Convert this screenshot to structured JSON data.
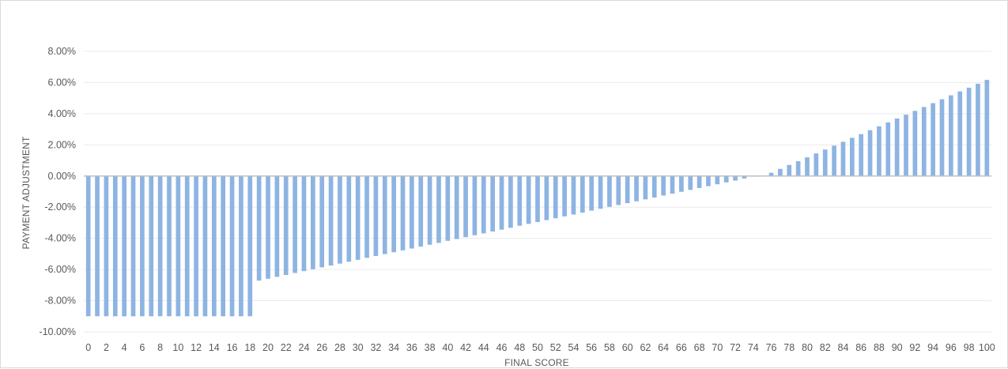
{
  "chart_data": {
    "type": "bar",
    "title": "",
    "xlabel": "FINAL SCORE",
    "ylabel": "PAYMENT ADJUSTMENT",
    "ylim": [
      -10,
      8
    ],
    "y_ticks": [
      8,
      6,
      4,
      2,
      0,
      -2,
      -4,
      -6,
      -8,
      -10
    ],
    "y_tick_labels": [
      "8.00%",
      "6.00%",
      "4.00%",
      "2.00%",
      "0.00%",
      "-2.00%",
      "-4.00%",
      "-6.00%",
      "-8.00%",
      "-10.00%"
    ],
    "y_unit": "%",
    "grid": true,
    "legend": "none",
    "bar_color": "#8db4e2",
    "zero_line_color": "#bfbfbf",
    "categories": [
      0,
      1,
      2,
      3,
      4,
      5,
      6,
      7,
      8,
      9,
      10,
      11,
      12,
      13,
      14,
      15,
      16,
      17,
      18,
      19,
      20,
      21,
      22,
      23,
      24,
      25,
      26,
      27,
      28,
      29,
      30,
      31,
      32,
      33,
      34,
      35,
      36,
      37,
      38,
      39,
      40,
      41,
      42,
      43,
      44,
      45,
      46,
      47,
      48,
      49,
      50,
      51,
      52,
      53,
      54,
      55,
      56,
      57,
      58,
      59,
      60,
      61,
      62,
      63,
      64,
      65,
      66,
      67,
      68,
      69,
      70,
      71,
      72,
      73,
      74,
      75,
      76,
      77,
      78,
      79,
      80,
      81,
      82,
      83,
      84,
      85,
      86,
      87,
      88,
      89,
      90,
      91,
      92,
      93,
      94,
      95,
      96,
      97,
      98,
      99,
      100
    ],
    "x_tick_labels": [
      "0",
      "2",
      "4",
      "6",
      "8",
      "10",
      "12",
      "14",
      "16",
      "18",
      "20",
      "22",
      "24",
      "26",
      "28",
      "30",
      "32",
      "34",
      "36",
      "38",
      "40",
      "42",
      "44",
      "46",
      "48",
      "50",
      "52",
      "54",
      "56",
      "58",
      "60",
      "62",
      "64",
      "66",
      "68",
      "70",
      "72",
      "74",
      "76",
      "78",
      "80",
      "82",
      "84",
      "86",
      "88",
      "90",
      "92",
      "94",
      "96",
      "98",
      "100"
    ],
    "values": [
      -9,
      -9,
      -9,
      -9,
      -9,
      -9,
      -9,
      -9,
      -9,
      -9,
      -9,
      -9,
      -9,
      -9,
      -9,
      -9,
      -9,
      -9,
      -9,
      -6.71,
      -6.59,
      -6.47,
      -6.35,
      -6.22,
      -6.1,
      -5.98,
      -5.86,
      -5.74,
      -5.62,
      -5.5,
      -5.38,
      -5.25,
      -5.13,
      -5.01,
      -4.89,
      -4.77,
      -4.65,
      -4.53,
      -4.41,
      -4.29,
      -4.16,
      -4.04,
      -3.92,
      -3.8,
      -3.68,
      -3.56,
      -3.44,
      -3.32,
      -3.19,
      -3.07,
      -2.95,
      -2.83,
      -2.71,
      -2.59,
      -2.47,
      -2.35,
      -2.22,
      -2.1,
      -1.98,
      -1.86,
      -1.74,
      -1.62,
      -1.5,
      -1.38,
      -1.25,
      -1.13,
      -1.01,
      -0.89,
      -0.77,
      -0.65,
      -0.53,
      -0.41,
      -0.29,
      -0.16,
      -0.04,
      0,
      0.21,
      0.46,
      0.71,
      0.95,
      1.2,
      1.45,
      1.7,
      1.95,
      2.2,
      2.45,
      2.69,
      2.94,
      3.19,
      3.44,
      3.69,
      3.94,
      4.18,
      4.43,
      4.68,
      4.93,
      5.18,
      5.43,
      5.67,
      5.92,
      6.17
    ]
  }
}
